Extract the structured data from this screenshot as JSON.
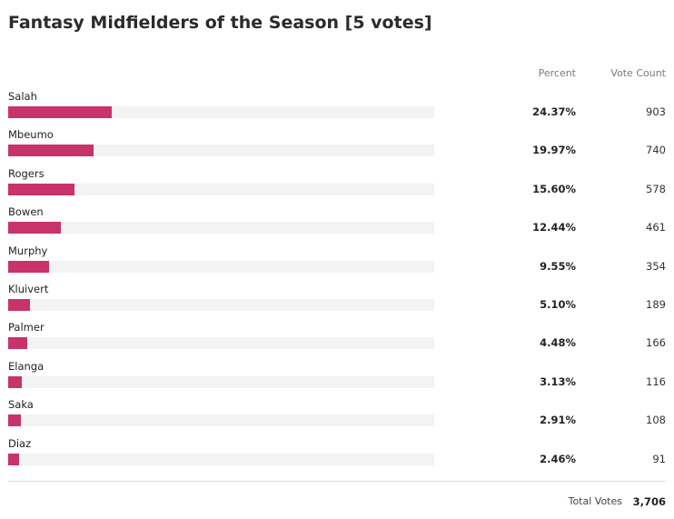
{
  "title": "Fantasy Midfielders of the Season [5 votes]",
  "headers": {
    "percent": "Percent",
    "vote_count": "Vote Count"
  },
  "colors": {
    "bar": "#c8336b",
    "track": "#f3f3f3"
  },
  "chart_data": {
    "type": "bar",
    "orientation": "horizontal",
    "title": "Fantasy Midfielders of the Season [5 votes]",
    "categories": [
      "Salah",
      "Mbeumo",
      "Rogers",
      "Bowen",
      "Murphy",
      "Kluivert",
      "Palmer",
      "Elanga",
      "Saka",
      "Diaz"
    ],
    "percent_labels": [
      "24.37%",
      "19.97%",
      "15.60%",
      "12.44%",
      "9.55%",
      "5.10%",
      "4.48%",
      "3.13%",
      "2.91%",
      "2.46%"
    ],
    "series": [
      {
        "name": "Percent",
        "values": [
          24.37,
          19.97,
          15.6,
          12.44,
          9.55,
          5.1,
          4.48,
          3.13,
          2.91,
          2.46
        ]
      },
      {
        "name": "Vote Count",
        "values": [
          903,
          740,
          578,
          461,
          354,
          189,
          166,
          116,
          108,
          91
        ]
      }
    ],
    "xlim": [
      0,
      100
    ]
  },
  "totals": {
    "label": "Total Votes",
    "value": "3,706"
  }
}
